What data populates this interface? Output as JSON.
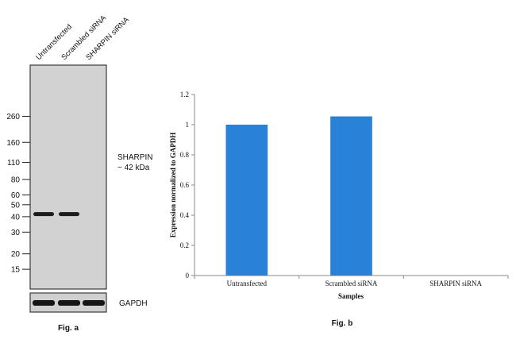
{
  "figure_a": {
    "lane_labels": [
      "Untransfected",
      "Scrambled siRNA",
      "SHARPIN siRNA"
    ],
    "mw_markers": [
      260,
      160,
      110,
      80,
      60,
      50,
      40,
      30,
      20,
      15
    ],
    "target_label": "SHARPIN",
    "target_size": "~ 42 kDa",
    "loading_label": "GAPDH",
    "caption": "Fig. a",
    "bands_sharpin": [
      1,
      1,
      0
    ],
    "bands_gapdh": [
      1,
      1,
      1
    ]
  },
  "figure_b": {
    "caption": "Fig. b"
  },
  "chart_data": {
    "type": "bar",
    "categories": [
      "Untransfected",
      "Scrambled siRNA",
      "SHARPIN siRNA"
    ],
    "values": [
      1.0,
      1.055,
      0.0
    ],
    "title": "",
    "xlabel": "Samples",
    "ylabel": "Expression normalized to GAPDH",
    "ylim": [
      0,
      1.2
    ],
    "yticks": [
      0,
      0.2,
      0.4,
      0.6,
      0.8,
      1,
      1.2
    ],
    "grid": false,
    "bar_color": "#2a82d8"
  }
}
